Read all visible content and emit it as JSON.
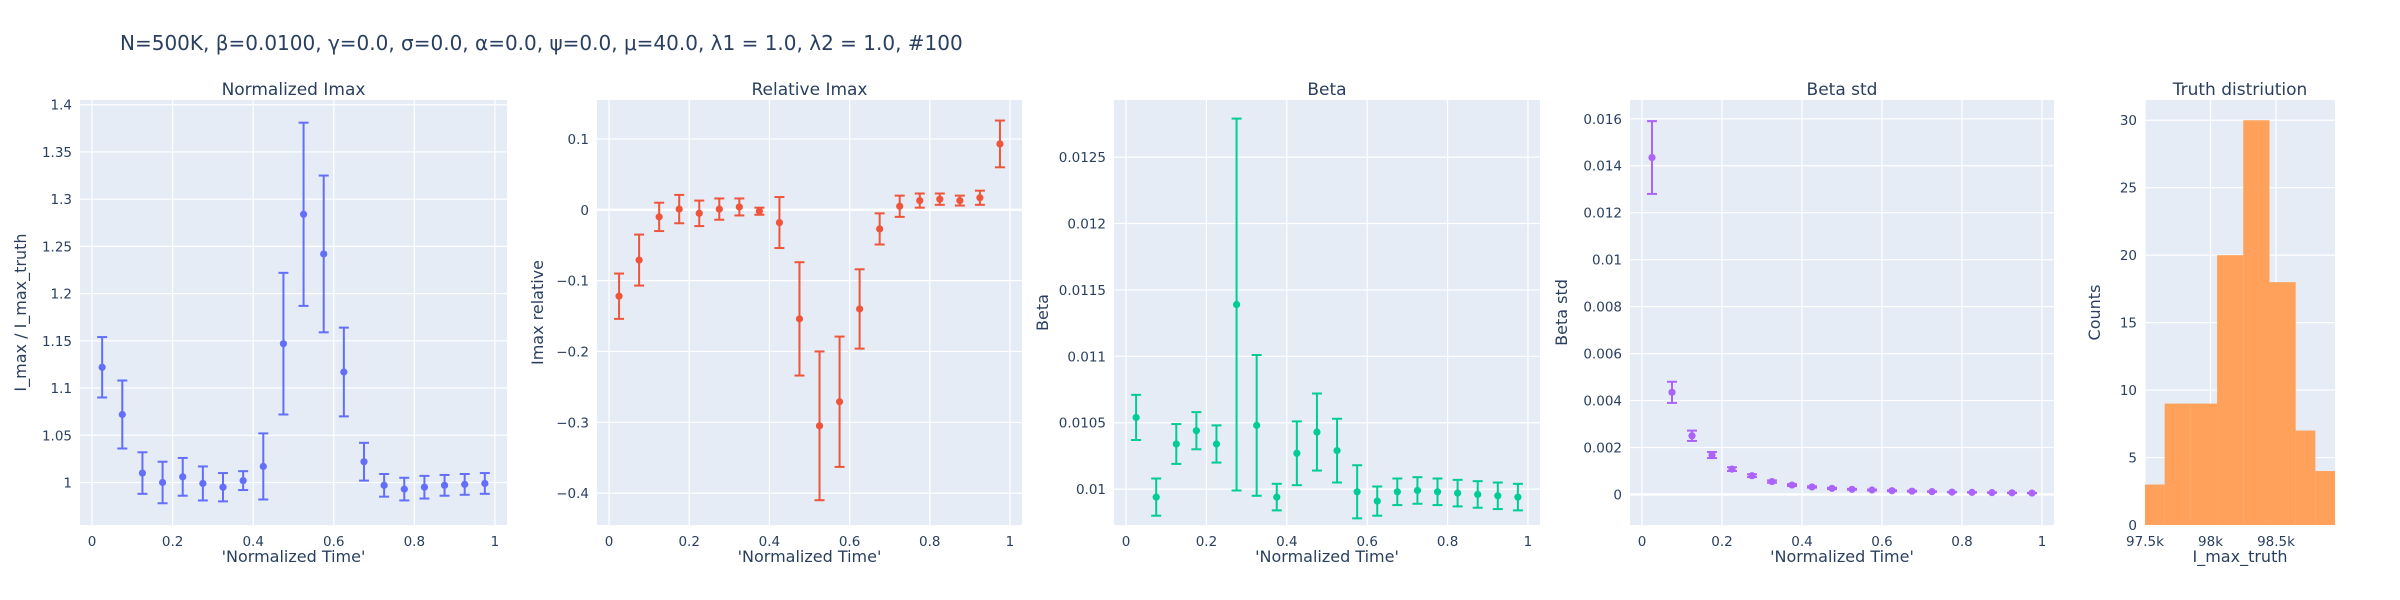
{
  "header": {
    "params": "N=500K, β=0.0100, γ=0.0, σ=0.0,  α=0.0, ψ=0.0, μ=40.0, λ1 = 1.0, λ2 = 1.0, #100"
  },
  "chart_data": [
    {
      "type": "scatter",
      "title": "Normalized Imax",
      "xlabel": "'Normalized Time'",
      "ylabel": "I_max / I_max_truth",
      "color": "#636efa",
      "xlim": [
        -0.03,
        1.03
      ],
      "ylim": [
        0.955,
        1.405
      ],
      "xticks": [
        0,
        0.2,
        0.4,
        0.6,
        0.8,
        1
      ],
      "xtick_labels": [
        "0",
        "0.2",
        "0.4",
        "0.6",
        "0.8",
        "1"
      ],
      "yticks": [
        1,
        1.05,
        1.1,
        1.15,
        1.2,
        1.25,
        1.3,
        1.35,
        1.4
      ],
      "ytick_labels": [
        "1",
        "1.05",
        "1.1",
        "1.15",
        "1.2",
        "1.25",
        "1.3",
        "1.35",
        "1.4"
      ],
      "series": [
        {
          "x": [
            0.025,
            0.075,
            0.125,
            0.175,
            0.225,
            0.275,
            0.325,
            0.375,
            0.425,
            0.475,
            0.525,
            0.575,
            0.625,
            0.675,
            0.725,
            0.775,
            0.825,
            0.875,
            0.925,
            0.975
          ],
          "y": [
            1.122,
            1.072,
            1.01,
            1.0,
            1.006,
            0.999,
            0.995,
            1.002,
            1.017,
            1.147,
            1.284,
            1.242,
            1.117,
            1.022,
            0.997,
            0.993,
            0.995,
            0.997,
            0.998,
            0.999
          ],
          "err": [
            0.032,
            0.036,
            0.022,
            0.022,
            0.02,
            0.018,
            0.015,
            0.01,
            0.035,
            0.075,
            0.097,
            0.083,
            0.047,
            0.02,
            0.012,
            0.012,
            0.012,
            0.011,
            0.011,
            0.011
          ]
        }
      ]
    },
    {
      "type": "scatter",
      "title": "Relative Imax",
      "xlabel": "'Normalized Time'",
      "ylabel": "Imax relative",
      "color": "#ef553b",
      "xlim": [
        -0.03,
        1.03
      ],
      "ylim": [
        -0.445,
        0.155
      ],
      "xticks": [
        0,
        0.2,
        0.4,
        0.6,
        0.8,
        1
      ],
      "xtick_labels": [
        "0",
        "0.2",
        "0.4",
        "0.6",
        "0.8",
        "1"
      ],
      "yticks": [
        -0.4,
        -0.3,
        -0.2,
        -0.1,
        0,
        0.1
      ],
      "ytick_labels": [
        "−0.4",
        "−0.3",
        "−0.2",
        "−0.1",
        "0",
        "0.1"
      ],
      "series": [
        {
          "x": [
            0.025,
            0.075,
            0.125,
            0.175,
            0.225,
            0.275,
            0.325,
            0.375,
            0.425,
            0.475,
            0.525,
            0.575,
            0.625,
            0.675,
            0.725,
            0.775,
            0.825,
            0.875,
            0.925,
            0.975
          ],
          "y": [
            -0.122,
            -0.071,
            -0.01,
            0.001,
            -0.005,
            0.001,
            0.004,
            -0.002,
            -0.018,
            -0.154,
            -0.305,
            -0.271,
            -0.14,
            -0.027,
            0.005,
            0.013,
            0.015,
            0.013,
            0.017,
            0.093
          ],
          "err": [
            0.032,
            0.036,
            0.02,
            0.02,
            0.018,
            0.015,
            0.012,
            0.005,
            0.036,
            0.08,
            0.105,
            0.092,
            0.056,
            0.022,
            0.015,
            0.01,
            0.008,
            0.007,
            0.01,
            0.033
          ]
        }
      ]
    },
    {
      "type": "scatter",
      "title": "Beta",
      "xlabel": "'Normalized Time'",
      "ylabel": "Beta",
      "color": "#00cc96",
      "xlim": [
        -0.03,
        1.03
      ],
      "ylim": [
        0.00973,
        0.01293
      ],
      "xticks": [
        0,
        0.2,
        0.4,
        0.6,
        0.8,
        1
      ],
      "xtick_labels": [
        "0",
        "0.2",
        "0.4",
        "0.6",
        "0.8",
        "1"
      ],
      "yticks": [
        0.01,
        0.0105,
        0.011,
        0.0115,
        0.012,
        0.0125
      ],
      "ytick_labels": [
        "0.01",
        "0.0105",
        "0.011",
        "0.0115",
        "0.012",
        "0.0125"
      ],
      "series": [
        {
          "x": [
            0.025,
            0.075,
            0.125,
            0.175,
            0.225,
            0.275,
            0.325,
            0.375,
            0.425,
            0.475,
            0.525,
            0.575,
            0.625,
            0.675,
            0.725,
            0.775,
            0.825,
            0.875,
            0.925,
            0.975
          ],
          "y": [
            0.01054,
            0.00994,
            0.01034,
            0.01044,
            0.01034,
            0.01139,
            0.01048,
            0.00994,
            0.01027,
            0.01043,
            0.01029,
            0.00998,
            0.00991,
            0.00998,
            0.00999,
            0.00998,
            0.00997,
            0.00996,
            0.00995,
            0.00994
          ],
          "err": [
            0.00017,
            0.00014,
            0.00015,
            0.00014,
            0.00014,
            0.0014,
            0.00053,
            0.0001,
            0.00024,
            0.00029,
            0.00024,
            0.0002,
            0.00011,
            0.0001,
            0.0001,
            0.0001,
            0.0001,
            0.0001,
            0.0001,
            0.0001
          ]
        }
      ]
    },
    {
      "type": "scatter",
      "title": "Beta std",
      "xlabel": "'Normalized Time'",
      "ylabel": "Beta std",
      "color": "#ab63fa",
      "xlim": [
        -0.03,
        1.03
      ],
      "ylim": [
        -0.0013,
        0.0168
      ],
      "xticks": [
        0,
        0.2,
        0.4,
        0.6,
        0.8,
        1
      ],
      "xtick_labels": [
        "0",
        "0.2",
        "0.4",
        "0.6",
        "0.8",
        "1"
      ],
      "yticks": [
        0,
        0.002,
        0.004,
        0.006,
        0.008,
        0.01,
        0.012,
        0.014,
        0.016
      ],
      "ytick_labels": [
        "0",
        "0.002",
        "0.004",
        "0.006",
        "0.008",
        "0.01",
        "0.012",
        "0.014",
        "0.016"
      ],
      "series": [
        {
          "x": [
            0.025,
            0.075,
            0.125,
            0.175,
            0.225,
            0.275,
            0.325,
            0.375,
            0.425,
            0.475,
            0.525,
            0.575,
            0.625,
            0.675,
            0.725,
            0.775,
            0.825,
            0.875,
            0.925,
            0.975
          ],
          "y": [
            0.01435,
            0.00435,
            0.0025,
            0.00168,
            0.00108,
            0.0008,
            0.00055,
            0.0004,
            0.00032,
            0.00026,
            0.00022,
            0.00019,
            0.00016,
            0.00014,
            0.00012,
            0.0001,
            9e-05,
            8e-05,
            7e-05,
            6e-05
          ],
          "err": [
            0.00155,
            0.00045,
            0.00022,
            0.00013,
            8e-05,
            6e-05,
            5e-05,
            4e-05,
            3e-05,
            3e-05,
            2e-05,
            2e-05,
            2e-05,
            2e-05,
            1e-05,
            1e-05,
            1e-05,
            1e-05,
            1e-05,
            1e-05
          ]
        }
      ]
    },
    {
      "type": "histogram",
      "title": "Truth distriution",
      "xlabel": "I_max_truth",
      "ylabel": "Counts",
      "color": "#ffa15a",
      "xlim": [
        97500,
        98950
      ],
      "ylim": [
        0,
        31.5
      ],
      "xticks": [
        97500,
        98000,
        98500
      ],
      "xtick_labels": [
        "97.5k",
        "98k",
        "98.5k"
      ],
      "yticks": [
        0,
        5,
        10,
        15,
        20,
        25,
        30
      ],
      "ytick_labels": [
        "0",
        "5",
        "10",
        "15",
        "20",
        "25",
        "30"
      ],
      "bin_edges": [
        97500,
        97650,
        97850,
        98050,
        98250,
        98450,
        98650,
        98800,
        98950
      ],
      "counts": [
        3,
        9,
        9,
        20,
        30,
        18,
        7,
        4
      ]
    }
  ]
}
